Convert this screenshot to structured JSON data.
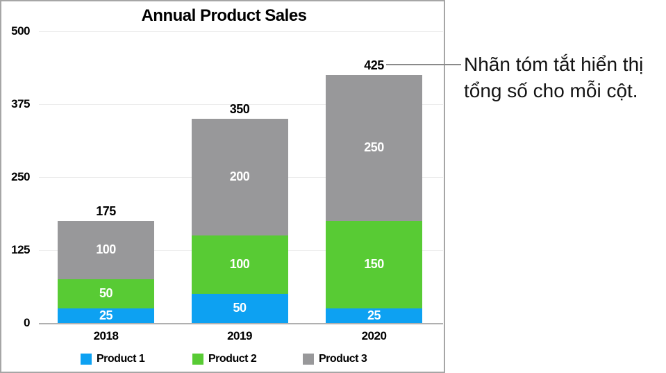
{
  "chart_data": {
    "type": "bar",
    "stacked": true,
    "title": "Annual Product Sales",
    "categories": [
      "2018",
      "2019",
      "2020"
    ],
    "series": [
      {
        "name": "Product 1",
        "color": "#0da1f2",
        "values": [
          25,
          50,
          25
        ]
      },
      {
        "name": "Product 2",
        "color": "#58cb34",
        "values": [
          50,
          100,
          150
        ]
      },
      {
        "name": "Product 3",
        "color": "#98989a",
        "values": [
          100,
          200,
          250
        ]
      }
    ],
    "totals": [
      175,
      350,
      425
    ],
    "yticks": [
      0,
      125,
      250,
      375,
      500
    ],
    "ylim": [
      0,
      500
    ],
    "grid": true,
    "legend_position": "bottom",
    "value_label_style": "white numbers centered inside each stacked segment",
    "total_label_style": "black number above each column"
  },
  "annotation": {
    "lines": [
      "Nhãn tóm tắt hiển thị",
      "tổng số cho mỗi cột."
    ]
  },
  "callout": {
    "target_total": "425",
    "line_color": "#8a8a8a"
  },
  "colors": {
    "panel_border": "#a6a6a6",
    "gridline": "#ececec",
    "axis_line": "#b0b0b0",
    "label_text": "#000000",
    "segment_label_text": "#ffffff"
  }
}
